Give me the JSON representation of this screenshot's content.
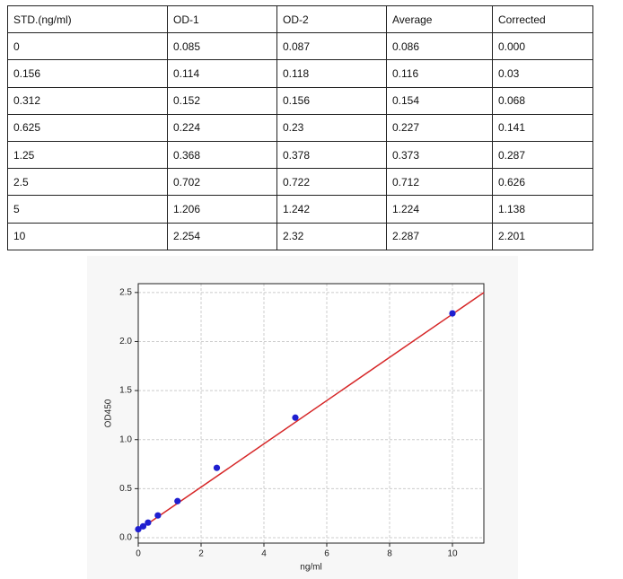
{
  "table": {
    "header": [
      "STD.(ng/ml)",
      "OD-1",
      "OD-2",
      "Average",
      "Corrected"
    ],
    "rows": [
      [
        "0",
        "0.085",
        "0.087",
        "0.086",
        "0.000"
      ],
      [
        "0.156",
        "0.114",
        "0.118",
        "0.116",
        "0.03"
      ],
      [
        "0.312",
        "0.152",
        "0.156",
        "0.154",
        "0.068"
      ],
      [
        "0.625",
        "0.224",
        "0.23",
        "0.227",
        "0.141"
      ],
      [
        "1.25",
        "0.368",
        "0.378",
        "0.373",
        "0.287"
      ],
      [
        "2.5",
        "0.702",
        "0.722",
        "0.712",
        "0.626"
      ],
      [
        "5",
        "1.206",
        "1.242",
        "1.224",
        "1.138"
      ],
      [
        "10",
        "2.254",
        "2.32",
        "2.287",
        "2.201"
      ]
    ]
  },
  "chart_data": {
    "type": "scatter",
    "xlabel": "ng/ml",
    "ylabel": "OD450",
    "x": [
      0,
      0.156,
      0.312,
      0.625,
      1.25,
      2.5,
      5,
      10
    ],
    "values": [
      0.086,
      0.116,
      0.154,
      0.227,
      0.373,
      0.712,
      1.224,
      2.287
    ],
    "color": "#1f1fd0",
    "fit_line": {
      "x": [
        0,
        11
      ],
      "values": [
        0.075,
        2.5
      ],
      "color": "#d62728"
    },
    "xlim": [
      0,
      11
    ],
    "xticks": [
      0,
      2,
      4,
      6,
      8,
      10
    ],
    "ylim": [
      -0.055,
      2.59
    ],
    "yticks": [
      {
        "value": 0,
        "label": "0.0"
      },
      {
        "value": 0.5,
        "label": "0.5"
      },
      {
        "value": 1,
        "label": "1.0"
      },
      {
        "value": 1.5,
        "label": "1.5"
      },
      {
        "value": 2,
        "label": "2.0"
      },
      {
        "value": 2.5,
        "label": "2.5"
      }
    ],
    "grid": true
  }
}
